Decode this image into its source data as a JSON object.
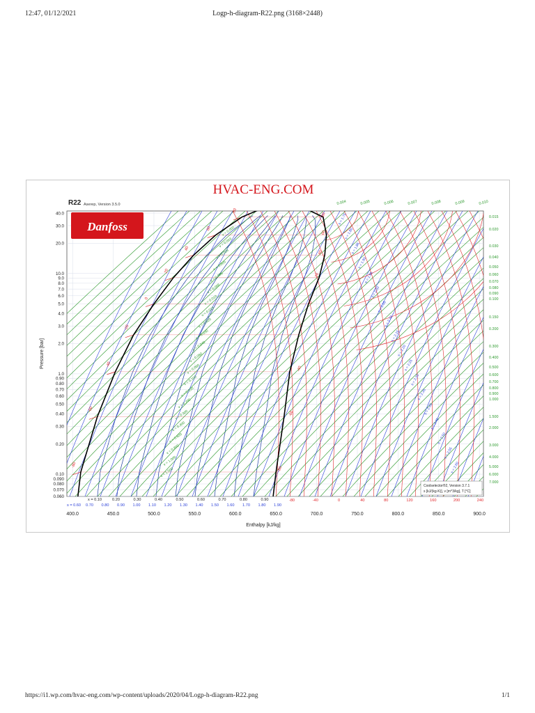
{
  "print_header": {
    "timestamp": "12:47, 01/12/2021",
    "title": "Logp-h-diagram-R22.png (3168×2448)"
  },
  "print_footer": {
    "url": "https://i1.wp.com/hvac-eng.com/wp-content/uploads/2020/04/Logp-h-diagram-R22.png",
    "page": "1/1"
  },
  "watermark": "HVAC-ENG.COM",
  "brand": {
    "logo_text": "Danfoss",
    "logo_bg": "#d4161c"
  },
  "chart_data": {
    "type": "line",
    "chart_title": "R22",
    "chart_subtitle": "Aserep, Version 3.5.0",
    "xlabel": "Enthalpy [kJ/kg]",
    "ylabel": "Pressure [bar]",
    "xlim": [
      393,
      905
    ],
    "ylim": [
      0.06,
      42
    ],
    "yscale": "log",
    "x_ticks": [
      "400.0",
      "450.0",
      "500.0",
      "550.0",
      "600.0",
      "650.0",
      "700.0",
      "750.0",
      "800.0",
      "850.0",
      "900.0"
    ],
    "y_ticks": [
      "0.060",
      "0.070",
      "0.080",
      "0.090",
      "0.10",
      "0.20",
      "0.30",
      "0.40",
      "0.50",
      "0.60",
      "0.70",
      "0.80",
      "0.90",
      "1.0",
      "2.0",
      "3.0",
      "4.0",
      "5.0",
      "6.0",
      "7.0",
      "8.0",
      "9.0",
      "10.0",
      "20.0",
      "30.0",
      "40.0"
    ],
    "quality_labels": [
      "x = 0.10",
      "0.20",
      "0.30",
      "0.40",
      "0.50",
      "0.60",
      "0.70",
      "0.80",
      "0.90"
    ],
    "entropy_bottom_labels": [
      "s = 0.60",
      "0.70",
      "0.80",
      "0.90",
      "1.00",
      "1.10",
      "1.20",
      "1.30",
      "1.40",
      "1.50",
      "1.60",
      "1.70",
      "1.80",
      "1.90"
    ],
    "temperature_bottom_labels": [
      "-80",
      "-40",
      "0",
      "40",
      "80",
      "120",
      "160",
      "200",
      "240"
    ],
    "volume_top_labels": [
      "0.004",
      "0.005",
      "0.006",
      "0.007",
      "0.008",
      "0.009",
      "0.010"
    ],
    "volume_right_labels": [
      "0.015",
      "0.020",
      "0.030",
      "0.040",
      "0.050",
      "0.060",
      "0.070",
      "0.080",
      "0.090",
      "0.100",
      "0.150",
      "0.200",
      "0.300",
      "0.400",
      "0.500",
      "0.600",
      "0.700",
      "0.800",
      "0.900",
      "1.000",
      "1.500",
      "2.000",
      "3.000",
      "4.000",
      "5.000",
      "6.000",
      "7.000"
    ],
    "volume_inner_labels": [
      "v = 0.002",
      "v = 0.003",
      "v = 0.004",
      "v = 0.005",
      "v = 0.006",
      "v = 0.008",
      "v = 0.010",
      "v = 0.015",
      "v = 0.020",
      "v = 0.030",
      "v = 0.040",
      "v = 0.060",
      "v = 0.080",
      "v = 0.100",
      "v = 0.150",
      "v = 0.200",
      "v = 0.300",
      "v = 0.400",
      "v = 0.600",
      "v = 0.800",
      "v = 1.000",
      "v = 1.500"
    ],
    "entropy_inner_labels": [
      "s = 1.75",
      "s = 1.80",
      "s = 1.85",
      "s = 1.90",
      "s = 1.95",
      "s = 2.00",
      "s = 2.05",
      "s = 2.10",
      "s = 2.15",
      "s = 2.20",
      "s = 2.25",
      "s = 2.30",
      "s = 2.35",
      "s = 2.40",
      "s = 2.45",
      "s = 2.50",
      "s = 2.55",
      "s = 2.60"
    ],
    "sat_temp_labels": [
      {
        "text": "-80",
        "p": 0.105
      },
      {
        "text": "-60",
        "p": 0.375
      },
      {
        "text": "-40",
        "p": 1.05
      },
      {
        "text": "-20",
        "p": 2.45
      },
      {
        "text": "0",
        "p": 4.98
      },
      {
        "text": "20",
        "p": 9.1
      },
      {
        "text": "40",
        "p": 15.3
      },
      {
        "text": "60",
        "p": 24.2
      },
      {
        "text": "80",
        "p": 36.5
      }
    ],
    "vapor_temp_labels": [
      {
        "text": "-80",
        "h": 658,
        "p": 0.105
      },
      {
        "text": "-60",
        "h": 672,
        "p": 0.375
      },
      {
        "text": "-40",
        "h": 682,
        "p": 1.05
      },
      {
        "text": "0",
        "h": 697,
        "p": 4.98
      },
      {
        "text": "20",
        "h": 704,
        "p": 9.1
      },
      {
        "text": "40",
        "h": 708,
        "p": 15.3
      },
      {
        "text": "60",
        "h": 712,
        "p": 24.2
      },
      {
        "text": "80",
        "h": 712,
        "p": 36.5
      }
    ],
    "saturation_curve": {
      "liquid": [
        [
          406.5,
          0.06
        ],
        [
          410,
          0.105
        ],
        [
          430.5,
          0.375
        ],
        [
          452.5,
          1.05
        ],
        [
          475,
          2.45
        ],
        [
          500,
          4.98
        ],
        [
          524,
          9.1
        ],
        [
          549,
          15.3
        ],
        [
          576,
          24.2
        ],
        [
          608,
          36.5
        ],
        [
          640,
          47.0
        ]
      ],
      "vapor": [
        [
          646.5,
          0.06
        ],
        [
          650,
          0.105
        ],
        [
          660,
          0.375
        ],
        [
          667,
          1.05
        ],
        [
          678,
          2.45
        ],
        [
          690,
          4.98
        ],
        [
          703,
          9.1
        ],
        [
          710,
          15.3
        ],
        [
          712,
          24.2
        ],
        [
          708,
          36.5
        ],
        [
          680,
          47.0
        ]
      ]
    },
    "footnote": [
      "Coolselector®2, Version 3.7.1",
      "s [kJ/(kg·K)], v [m^3/kg], T [°C]"
    ],
    "colors": {
      "isotherm": "#e0262a",
      "isochore": "#2e9a2e",
      "isentrope": "#2a3fd8",
      "quality": "#1e3fa0",
      "saturation": "#000000"
    }
  }
}
